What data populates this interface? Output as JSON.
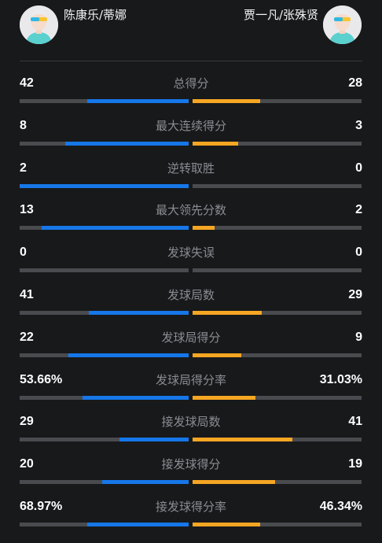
{
  "players": {
    "left": {
      "name": "陈康乐/蒂娜",
      "avatar_icon": "player-avatar-icon"
    },
    "right": {
      "name": "贾一凡/张殊贤",
      "avatar_icon": "player-avatar-icon"
    }
  },
  "colors": {
    "left_bar": "#1677e8",
    "right_bar": "#f5a623",
    "track": "#4a4b4f",
    "background": "#18191b"
  },
  "stats": [
    {
      "label": "总得分",
      "left": "42",
      "right": "28",
      "left_fill": 0.6,
      "right_fill": 0.4
    },
    {
      "label": "最大连续得分",
      "left": "8",
      "right": "3",
      "left_fill": 0.73,
      "right_fill": 0.27
    },
    {
      "label": "逆转取胜",
      "left": "2",
      "right": "0",
      "left_fill": 1.0,
      "right_fill": 0.0
    },
    {
      "label": "最大领先分数",
      "left": "13",
      "right": "2",
      "left_fill": 0.87,
      "right_fill": 0.13
    },
    {
      "label": "发球失误",
      "left": "0",
      "right": "0",
      "left_fill": 0.0,
      "right_fill": 0.0
    },
    {
      "label": "发球局数",
      "left": "41",
      "right": "29",
      "left_fill": 0.59,
      "right_fill": 0.41
    },
    {
      "label": "发球局得分",
      "left": "22",
      "right": "9",
      "left_fill": 0.71,
      "right_fill": 0.29
    },
    {
      "label": "发球局得分率",
      "left": "53.66%",
      "right": "31.03%",
      "left_fill": 0.63,
      "right_fill": 0.37
    },
    {
      "label": "接发球局数",
      "left": "29",
      "right": "41",
      "left_fill": 0.41,
      "right_fill": 0.59
    },
    {
      "label": "接发球得分",
      "left": "20",
      "right": "19",
      "left_fill": 0.51,
      "right_fill": 0.49
    },
    {
      "label": "接发球得分率",
      "left": "68.97%",
      "right": "46.34%",
      "left_fill": 0.6,
      "right_fill": 0.4
    }
  ]
}
